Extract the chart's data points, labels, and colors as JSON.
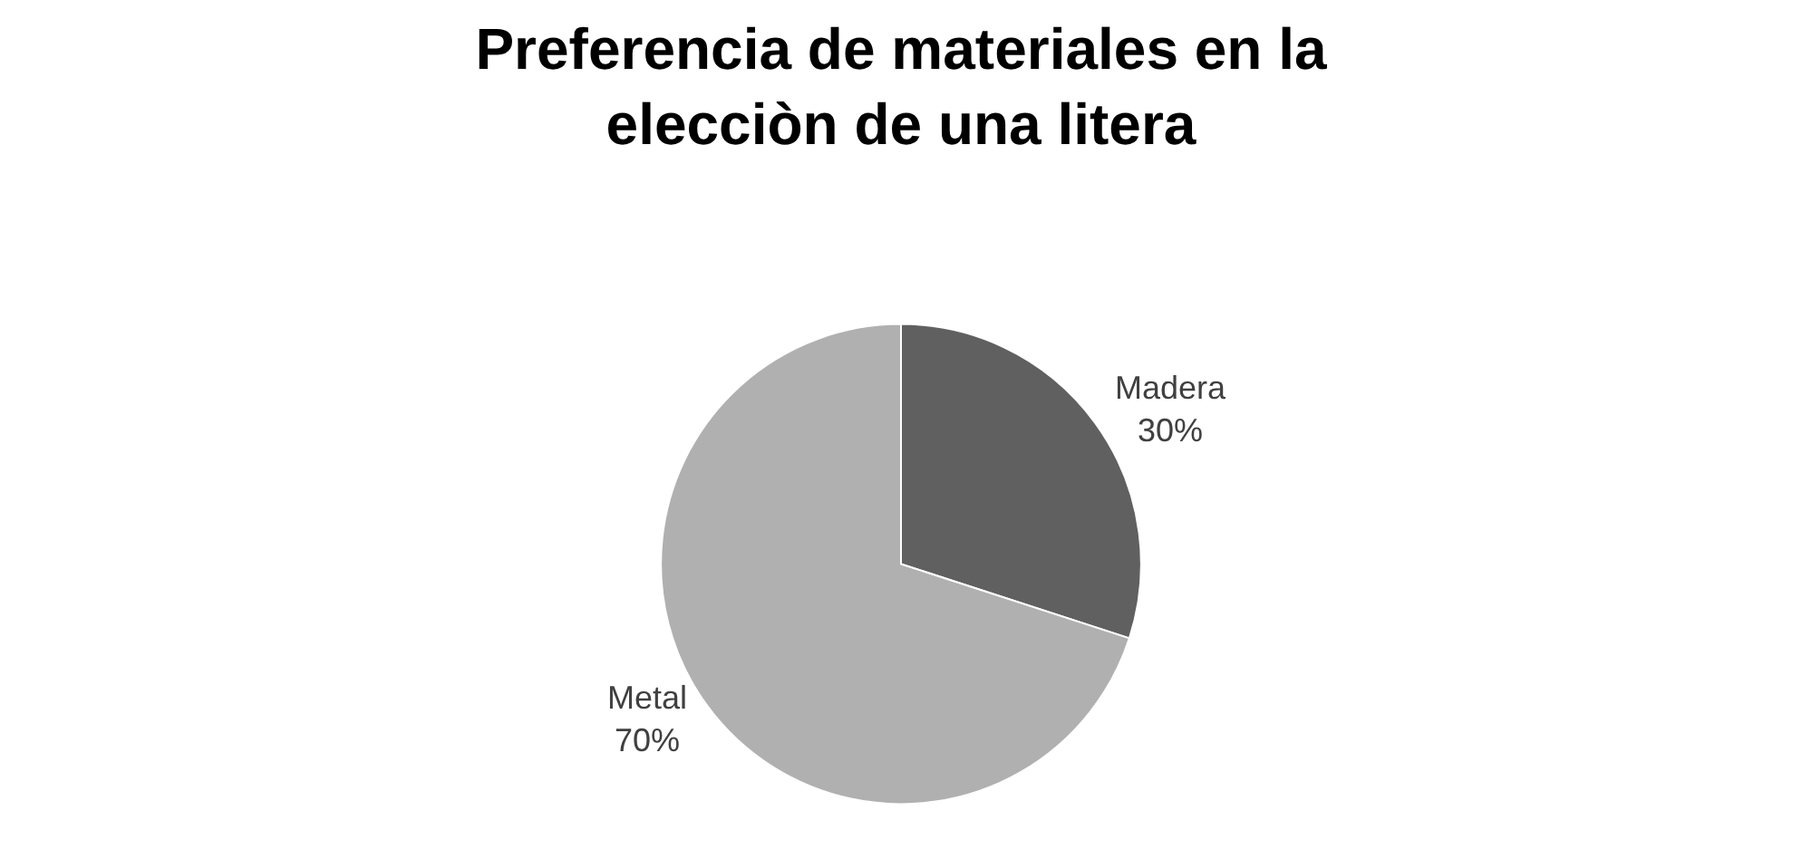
{
  "chart_data": {
    "type": "pie",
    "title": "Preferencia de materiales en la elecciòn de una litera",
    "categories": [
      "Madera",
      "Metal"
    ],
    "values": [
      30,
      70
    ],
    "value_labels": [
      "30%",
      "70%"
    ],
    "colors": [
      "#606060",
      "#b0b0b0"
    ],
    "legend": false
  }
}
